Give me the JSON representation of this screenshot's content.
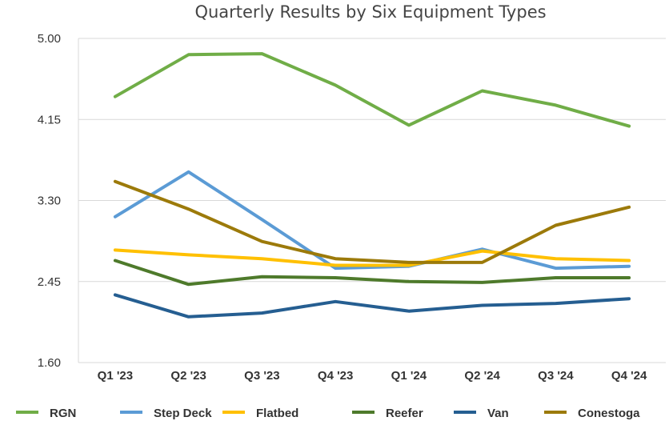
{
  "chart_data": {
    "type": "line",
    "title": "Quarterly Results by Six Equipment Types",
    "xlabel": "",
    "ylabel": "",
    "categories": [
      "Q1 '23",
      "Q2 '23",
      "Q3 '23",
      "Q4 '23",
      "Q1 '24",
      "Q2 '24",
      "Q3 '24",
      "Q4 '24"
    ],
    "ylim": [
      1.6,
      5.0
    ],
    "yticks": [
      "5.00",
      "4.15",
      "3.30",
      "2.45",
      "1.60"
    ],
    "grid": "horizontal",
    "legend_position": "bottom",
    "series": [
      {
        "name": "RGN",
        "color": "#70AD47",
        "values": [
          4.39,
          4.83,
          4.84,
          4.51,
          4.09,
          4.45,
          4.3,
          4.08
        ]
      },
      {
        "name": "Step Deck",
        "color": "#5B9BD5",
        "values": [
          3.13,
          3.6,
          3.1,
          2.59,
          2.61,
          2.79,
          2.59,
          2.61
        ]
      },
      {
        "name": "Flatbed",
        "color": "#FFC000",
        "values": [
          2.78,
          2.73,
          2.69,
          2.62,
          2.62,
          2.77,
          2.69,
          2.67
        ]
      },
      {
        "name": "Reefer",
        "color": "#4E7A2B",
        "values": [
          2.67,
          2.42,
          2.5,
          2.49,
          2.45,
          2.44,
          2.49,
          2.49
        ]
      },
      {
        "name": "Van",
        "color": "#255E91",
        "values": [
          2.31,
          2.08,
          2.12,
          2.24,
          2.14,
          2.2,
          2.22,
          2.27
        ]
      },
      {
        "name": "Conestoga",
        "color": "#9C7A0A",
        "values": [
          3.5,
          3.21,
          2.87,
          2.69,
          2.65,
          2.65,
          3.04,
          3.23
        ]
      }
    ]
  }
}
